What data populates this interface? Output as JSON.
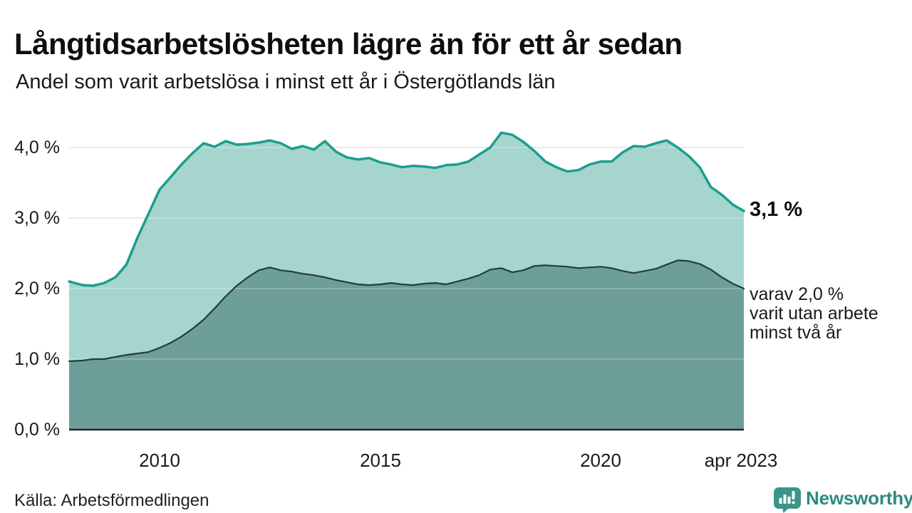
{
  "header": {
    "title": "Långtidsarbetslösheten lägre än för ett år sedan",
    "subtitle": "Andel som varit arbetslösa i minst ett år i Östergötlands län"
  },
  "chart_data": {
    "type": "area",
    "title": "Långtidsarbetslösheten lägre än för ett år sedan",
    "subtitle": "Andel som varit arbetslösa i minst ett år i Östergötlands län",
    "x_unit": "decimal_year",
    "x": [
      2007.95,
      2008.25,
      2008.5,
      2008.75,
      2009,
      2009.25,
      2009.5,
      2009.75,
      2010,
      2010.25,
      2010.5,
      2010.75,
      2011,
      2011.25,
      2011.5,
      2011.75,
      2012,
      2012.25,
      2012.5,
      2012.75,
      2013,
      2013.25,
      2013.5,
      2013.75,
      2014,
      2014.25,
      2014.5,
      2014.75,
      2015,
      2015.25,
      2015.5,
      2015.75,
      2016,
      2016.25,
      2016.5,
      2016.75,
      2017,
      2017.25,
      2017.5,
      2017.75,
      2018,
      2018.25,
      2018.5,
      2018.75,
      2019,
      2019.25,
      2019.5,
      2019.75,
      2020,
      2020.25,
      2020.5,
      2020.75,
      2021,
      2021.25,
      2021.5,
      2021.75,
      2022,
      2022.25,
      2022.5,
      2022.75,
      2023,
      2023.25
    ],
    "series": [
      {
        "name": "Andel som varit arbetslösa i minst ett år",
        "color": "#1a9e8d",
        "fill": "#a5d5cd",
        "values": [
          2.1,
          2.05,
          2.04,
          2.08,
          2.16,
          2.34,
          2.72,
          3.06,
          3.4,
          3.58,
          3.76,
          3.92,
          4.06,
          4.01,
          4.09,
          4.04,
          4.05,
          4.07,
          4.1,
          4.06,
          3.98,
          4.02,
          3.97,
          4.09,
          3.94,
          3.86,
          3.83,
          3.85,
          3.79,
          3.76,
          3.72,
          3.74,
          3.73,
          3.71,
          3.75,
          3.76,
          3.8,
          3.9,
          4.0,
          4.21,
          4.18,
          4.08,
          3.95,
          3.8,
          3.72,
          3.66,
          3.68,
          3.76,
          3.8,
          3.8,
          3.93,
          4.02,
          4.01,
          4.06,
          4.1,
          4.0,
          3.88,
          3.72,
          3.44,
          3.33,
          3.19,
          3.1
        ]
      },
      {
        "name": "Andel som varit utan arbete minst två år",
        "color": "#203f3c",
        "fill": "#6d9e99",
        "values": [
          0.97,
          0.98,
          1.0,
          1.0,
          1.03,
          1.06,
          1.08,
          1.1,
          1.16,
          1.23,
          1.32,
          1.43,
          1.56,
          1.72,
          1.89,
          2.04,
          2.16,
          2.26,
          2.3,
          2.26,
          2.24,
          2.21,
          2.19,
          2.16,
          2.12,
          2.09,
          2.06,
          2.05,
          2.06,
          2.08,
          2.06,
          2.05,
          2.07,
          2.08,
          2.06,
          2.1,
          2.14,
          2.19,
          2.27,
          2.29,
          2.23,
          2.26,
          2.32,
          2.33,
          2.32,
          2.31,
          2.29,
          2.3,
          2.31,
          2.29,
          2.25,
          2.22,
          2.25,
          2.28,
          2.34,
          2.4,
          2.39,
          2.35,
          2.27,
          2.16,
          2.07,
          2.0
        ]
      }
    ],
    "ylim": [
      0,
      4.35
    ],
    "xlim": [
      2007.95,
      2023.25
    ],
    "grid": true,
    "legend_position": "none",
    "y_ticks": [
      "0,0 %",
      "1,0 %",
      "2,0 %",
      "3,0 %",
      "4,0 %"
    ],
    "y_tick_values": [
      0,
      1,
      2,
      3,
      4
    ],
    "x_ticks": [
      {
        "label": "2010",
        "year": 2010
      },
      {
        "label": "2015",
        "year": 2015
      },
      {
        "label": "2020",
        "year": 2020
      },
      {
        "label": "apr 2023",
        "year": 2023.25
      }
    ],
    "annotations": {
      "end_value_label": "3,1 %",
      "secondary_label_lines": [
        "varav 2,0 %",
        "varit utan arbete",
        "minst två år"
      ]
    }
  },
  "colors": {
    "grid": "#d9d9d9",
    "grid_overlay": "rgba(255,255,255,0.32)",
    "baseline": "#1c2725",
    "accent_teal": "#1a9e8d",
    "brand_teal": "#2e8b81",
    "brand_icon_teal": "#3c948a"
  },
  "footer": {
    "source": "Källa: Arbetsförmedlingen",
    "brand": "Newsworthy"
  }
}
